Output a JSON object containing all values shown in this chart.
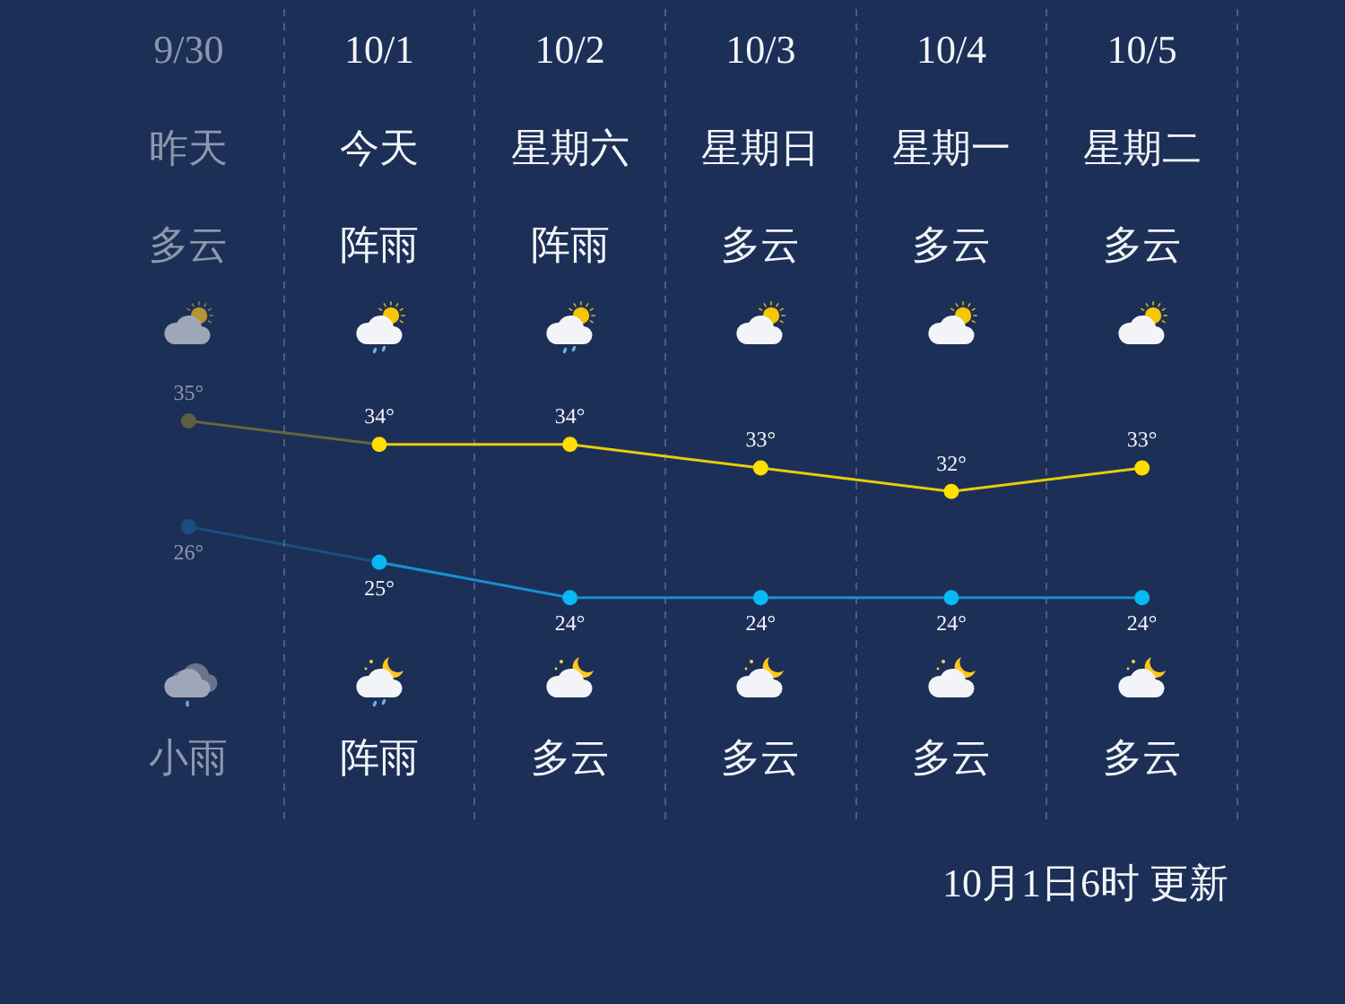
{
  "chart_data": {
    "type": "line",
    "categories": [
      "9/30",
      "10/1",
      "10/2",
      "10/3",
      "10/4",
      "10/5"
    ],
    "series": [
      {
        "color": "#e6cd0a",
        "colors": [
          "#5c5f44",
          "#ffdf00",
          "#ffdf00",
          "#ffdf00",
          "#ffdf00",
          "#ffdf00"
        ],
        "values": [
          35,
          34,
          34,
          33,
          32,
          33
        ],
        "value_labels": [
          "35°",
          "34°",
          "34°",
          "33°",
          "32°",
          "33°"
        ]
      },
      {
        "color": "#1690d0",
        "colors": [
          "#1c4e80",
          "#08b8f5",
          "#08b8f5",
          "#08b8f5",
          "#08b8f5",
          "#08b8f5"
        ],
        "values": [
          26,
          25,
          24,
          24,
          24,
          24
        ],
        "value_labels": [
          "26°",
          "25°",
          "24°",
          "24°",
          "24°",
          "24°"
        ],
        "axis": "y2"
      }
    ],
    "ylim": [
      18,
      52.5
    ],
    "y2lim": [
      17.7,
      40.6
    ],
    "grid": "x",
    "marker": "circle",
    "line_style": "solid",
    "annotations": [
      "昨天",
      "多云",
      "小雨",
      "今天",
      "阵雨",
      "阵雨",
      "星期六",
      "阵雨",
      "多云",
      "星期日",
      "多云",
      "多云",
      "星期一",
      "多云",
      "多云",
      "星期二",
      "多云",
      "多云",
      "10月1日6时 更新"
    ]
  }
}
